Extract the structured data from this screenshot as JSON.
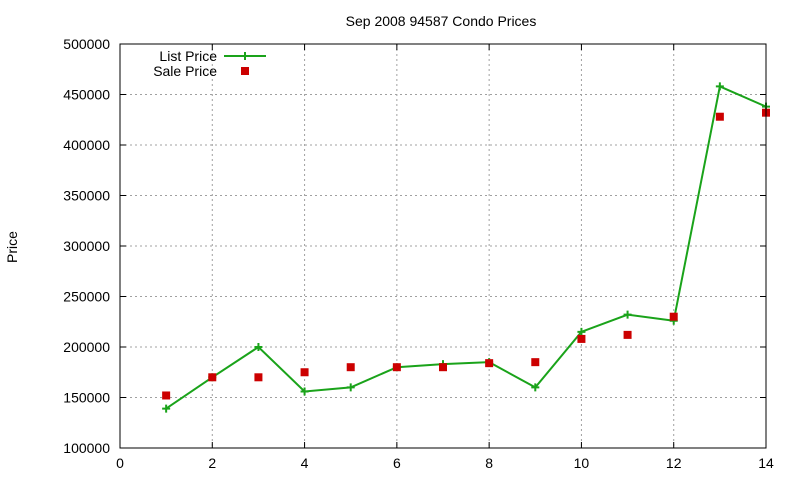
{
  "chart_data": {
    "type": "line",
    "title": "Sep 2008 94587 Condo Prices",
    "xlabel": "",
    "ylabel": "Price",
    "xlim": [
      0,
      14
    ],
    "ylim": [
      100000,
      500000
    ],
    "x_ticks": [
      0,
      2,
      4,
      6,
      8,
      10,
      12,
      14
    ],
    "y_ticks": [
      100000,
      150000,
      200000,
      250000,
      300000,
      350000,
      400000,
      450000,
      500000
    ],
    "grid": true,
    "legend_position": "top-left",
    "series": [
      {
        "name": "List Price",
        "style": "line-with-plus-markers",
        "color": "#1aa31a",
        "x": [
          1,
          2,
          3,
          4,
          5,
          6,
          7,
          8,
          9,
          10,
          11,
          12,
          13,
          14
        ],
        "y": [
          139000,
          170000,
          200000,
          156000,
          160000,
          180000,
          183000,
          185000,
          160000,
          215000,
          232000,
          226000,
          458000,
          438000
        ]
      },
      {
        "name": "Sale Price",
        "style": "square-markers",
        "color": "#cc0000",
        "x": [
          1,
          2,
          3,
          4,
          5,
          6,
          7,
          8,
          9,
          10,
          11,
          12,
          13,
          14
        ],
        "y": [
          152000,
          170000,
          170000,
          175000,
          180000,
          180000,
          180000,
          184000,
          185000,
          208000,
          212000,
          230000,
          428000,
          432000
        ]
      }
    ]
  }
}
